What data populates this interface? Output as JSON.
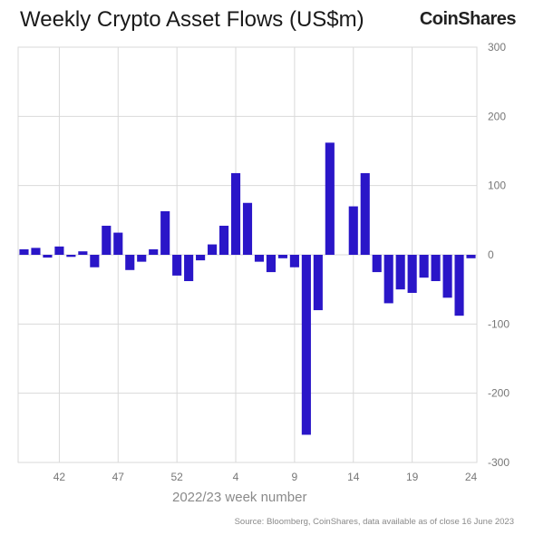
{
  "header": {
    "title": "Weekly Crypto Asset Flows (US$m)",
    "brand": "CoinShares"
  },
  "footer": {
    "source": "Source: Bloomberg, CoinShares, data available as of close 16 June 2023"
  },
  "chart_data": {
    "type": "bar",
    "xlabel": "2022/23 week number",
    "ylabel": "",
    "ylim": [
      -300,
      300
    ],
    "yticks": [
      300,
      200,
      100,
      0,
      -100,
      -200,
      -300
    ],
    "grid": true,
    "y_axis_side": "right",
    "bar_color": "#2a16c8",
    "x_tick_labels": [
      {
        "week": "42",
        "index": 3
      },
      {
        "week": "47",
        "index": 8
      },
      {
        "week": "52",
        "index": 13
      },
      {
        "week": "4",
        "index": 18
      },
      {
        "week": "9",
        "index": 23
      },
      {
        "week": "14",
        "index": 28
      },
      {
        "week": "19",
        "index": 33
      },
      {
        "week": "24",
        "index": 38
      }
    ],
    "values": [
      8,
      10,
      -4,
      12,
      -3,
      5,
      -18,
      42,
      32,
      -22,
      -10,
      8,
      63,
      -30,
      -38,
      -8,
      15,
      42,
      118,
      75,
      -10,
      -25,
      -5,
      -18,
      -260,
      -80,
      162,
      0,
      70,
      118,
      -25,
      -70,
      -50,
      -55,
      -33,
      -38,
      -62,
      -88,
      -5
    ]
  }
}
